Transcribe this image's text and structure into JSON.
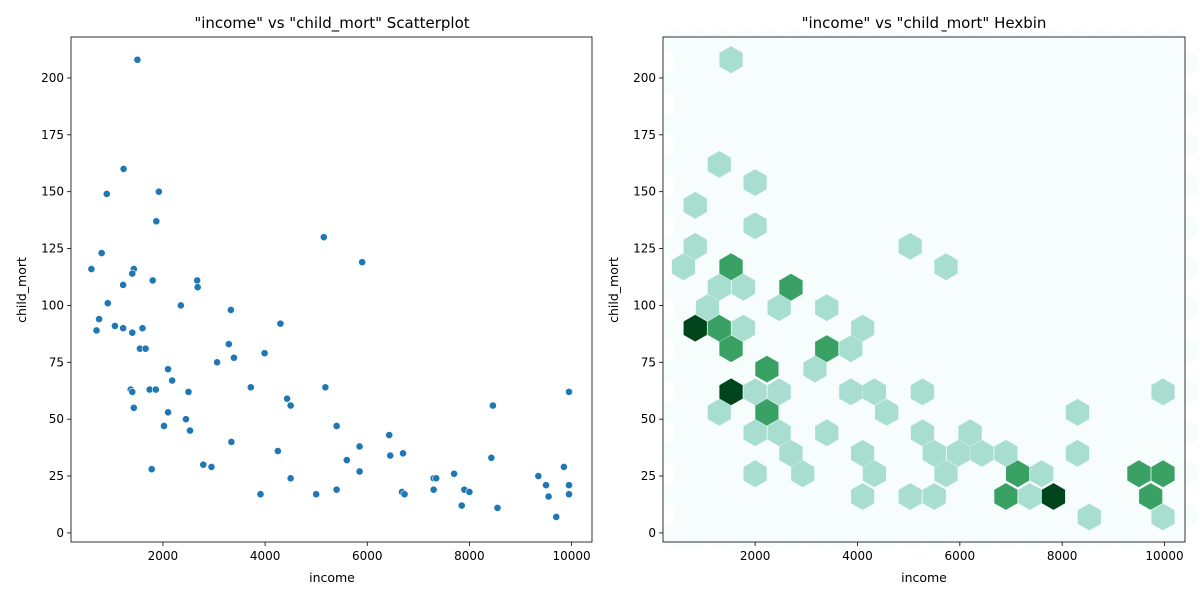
{
  "chart_data": [
    {
      "type": "scatter",
      "title": "\"income\" vs \"child_mort\" Scatterplot",
      "xlabel": "income",
      "ylabel": "child_mort",
      "xlim": [
        200,
        10400
      ],
      "ylim": [
        -4,
        218
      ],
      "xticks": [
        2000,
        4000,
        6000,
        8000,
        10000
      ],
      "yticks": [
        0,
        25,
        50,
        75,
        100,
        125,
        150,
        175,
        200
      ],
      "marker_color": "#1f77b4",
      "points": [
        [
          1500,
          208
        ],
        [
          1230,
          160
        ],
        [
          900,
          149
        ],
        [
          1920,
          150
        ],
        [
          1870,
          137
        ],
        [
          5150,
          130
        ],
        [
          800,
          123
        ],
        [
          5900,
          119
        ],
        [
          600,
          116
        ],
        [
          1430,
          116
        ],
        [
          1400,
          114
        ],
        [
          1800,
          111
        ],
        [
          2670,
          111
        ],
        [
          1220,
          109
        ],
        [
          2680,
          108
        ],
        [
          920,
          101
        ],
        [
          2350,
          100
        ],
        [
          3330,
          98
        ],
        [
          4300,
          92
        ],
        [
          750,
          94
        ],
        [
          700,
          89
        ],
        [
          1060,
          91
        ],
        [
          1220,
          90
        ],
        [
          1600,
          90
        ],
        [
          1400,
          88
        ],
        [
          1550,
          81
        ],
        [
          1660,
          81
        ],
        [
          3290,
          83
        ],
        [
          3990,
          79
        ],
        [
          3390,
          77
        ],
        [
          3060,
          75
        ],
        [
          2100,
          72
        ],
        [
          2180,
          67
        ],
        [
          3720,
          64
        ],
        [
          5180,
          64
        ],
        [
          1370,
          63
        ],
        [
          1400,
          62
        ],
        [
          1740,
          63
        ],
        [
          1860,
          63
        ],
        [
          2500,
          62
        ],
        [
          9950,
          62
        ],
        [
          4430,
          59
        ],
        [
          4500,
          56
        ],
        [
          8460,
          56
        ],
        [
          1430,
          55
        ],
        [
          2100,
          53
        ],
        [
          2450,
          50
        ],
        [
          2020,
          47
        ],
        [
          5400,
          47
        ],
        [
          2530,
          45
        ],
        [
          6430,
          43
        ],
        [
          3340,
          40
        ],
        [
          5850,
          38
        ],
        [
          4250,
          36
        ],
        [
          6700,
          35
        ],
        [
          6450,
          34
        ],
        [
          8430,
          33
        ],
        [
          5600,
          32
        ],
        [
          2790,
          30
        ],
        [
          2950,
          29
        ],
        [
          1780,
          28
        ],
        [
          9850,
          29
        ],
        [
          5850,
          27
        ],
        [
          7700,
          26
        ],
        [
          9350,
          25
        ],
        [
          7300,
          24
        ],
        [
          7350,
          24
        ],
        [
          4500,
          24
        ],
        [
          9500,
          21
        ],
        [
          9950,
          21
        ],
        [
          7300,
          19
        ],
        [
          5400,
          19
        ],
        [
          7900,
          19
        ],
        [
          8000,
          18
        ],
        [
          6680,
          18
        ],
        [
          6730,
          17
        ],
        [
          3910,
          17
        ],
        [
          5000,
          17
        ],
        [
          9950,
          17
        ],
        [
          9550,
          16
        ],
        [
          7850,
          12
        ],
        [
          8550,
          11
        ],
        [
          9700,
          7
        ]
      ]
    },
    {
      "type": "heatmap",
      "title": "\"income\" vs \"child_mort\" Hexbin",
      "xlabel": "income",
      "ylabel": "child_mort",
      "xlim": [
        200,
        10400
      ],
      "ylim": [
        -4,
        218
      ],
      "xticks": [
        2000,
        4000,
        6000,
        8000,
        10000
      ],
      "yticks": [
        0,
        25,
        50,
        75,
        100,
        125,
        150,
        175,
        200
      ],
      "gridsize": 20,
      "colors": [
        "#f7fcfd",
        "#a8ded0",
        "#38a163",
        "#00441b"
      ],
      "bins": [
        [
          1530,
          208,
          1
        ],
        [
          1300,
          162,
          1
        ],
        [
          2000,
          154,
          1
        ],
        [
          830,
          144,
          1
        ],
        [
          2000,
          135,
          1
        ],
        [
          830,
          126,
          1
        ],
        [
          5030,
          126,
          1
        ],
        [
          600,
          117,
          1
        ],
        [
          1530,
          117,
          2
        ],
        [
          5730,
          117,
          1
        ],
        [
          1300,
          108,
          1
        ],
        [
          1770,
          108,
          1
        ],
        [
          2700,
          108,
          2
        ],
        [
          1070,
          99,
          1
        ],
        [
          2470,
          99,
          1
        ],
        [
          3400,
          99,
          1
        ],
        [
          830,
          90,
          3
        ],
        [
          1300,
          90,
          2
        ],
        [
          1770,
          90,
          1
        ],
        [
          4100,
          90,
          1
        ],
        [
          1530,
          81,
          2
        ],
        [
          3400,
          81,
          2
        ],
        [
          3870,
          81,
          1
        ],
        [
          2230,
          72,
          2
        ],
        [
          3170,
          72,
          1
        ],
        [
          1530,
          62,
          3
        ],
        [
          2000,
          62,
          1
        ],
        [
          2470,
          62,
          1
        ],
        [
          3870,
          62,
          1
        ],
        [
          4330,
          62,
          1
        ],
        [
          5270,
          62,
          1
        ],
        [
          9970,
          62,
          1
        ],
        [
          1300,
          53,
          1
        ],
        [
          2230,
          53,
          2
        ],
        [
          4570,
          53,
          1
        ],
        [
          8300,
          53,
          1
        ],
        [
          2000,
          44,
          1
        ],
        [
          2470,
          44,
          1
        ],
        [
          3400,
          44,
          1
        ],
        [
          5270,
          44,
          1
        ],
        [
          6200,
          44,
          1
        ],
        [
          2700,
          35,
          1
        ],
        [
          4100,
          35,
          1
        ],
        [
          5500,
          35,
          1
        ],
        [
          5970,
          35,
          1
        ],
        [
          6430,
          35,
          1
        ],
        [
          6900,
          35,
          1
        ],
        [
          8300,
          35,
          1
        ],
        [
          2000,
          26,
          1
        ],
        [
          2930,
          26,
          1
        ],
        [
          4330,
          26,
          1
        ],
        [
          5730,
          26,
          1
        ],
        [
          7130,
          26,
          2
        ],
        [
          7600,
          26,
          1
        ],
        [
          9500,
          26,
          2
        ],
        [
          9970,
          26,
          2
        ],
        [
          4100,
          16,
          1
        ],
        [
          5030,
          16,
          1
        ],
        [
          5500,
          16,
          1
        ],
        [
          6900,
          16,
          2
        ],
        [
          7370,
          16,
          1
        ],
        [
          7830,
          16,
          3
        ],
        [
          9730,
          16,
          2
        ],
        [
          8530,
          7,
          1
        ],
        [
          9970,
          7,
          1
        ]
      ]
    }
  ]
}
